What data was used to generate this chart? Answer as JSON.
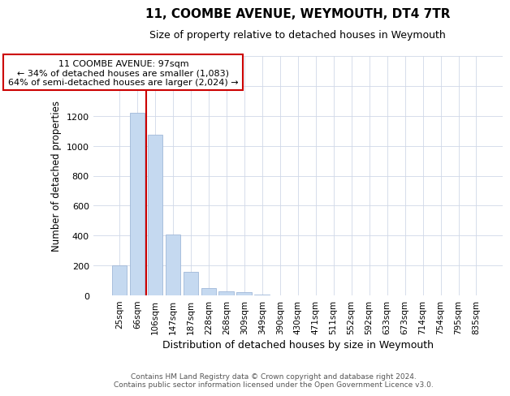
{
  "title1": "11, COOMBE AVENUE, WEYMOUTH, DT4 7TR",
  "title2": "Size of property relative to detached houses in Weymouth",
  "xlabel": "Distribution of detached houses by size in Weymouth",
  "ylabel": "Number of detached properties",
  "bar_labels": [
    "25sqm",
    "66sqm",
    "106sqm",
    "147sqm",
    "187sqm",
    "228sqm",
    "268sqm",
    "309sqm",
    "349sqm",
    "390sqm",
    "430sqm",
    "471sqm",
    "511sqm",
    "552sqm",
    "592sqm",
    "633sqm",
    "673sqm",
    "714sqm",
    "754sqm",
    "795sqm",
    "835sqm"
  ],
  "bar_values": [
    200,
    1220,
    1075,
    405,
    160,
    50,
    25,
    20,
    5,
    0,
    0,
    0,
    0,
    0,
    0,
    0,
    0,
    0,
    0,
    0,
    0
  ],
  "bar_color": "#c5d9f0",
  "bar_edgecolor": "#a0b8d8",
  "grid_color": "#d0d8e8",
  "ylim": [
    0,
    1600
  ],
  "red_line_x": 1.5,
  "annotation_title": "11 COOMBE AVENUE: 97sqm",
  "annotation_line1": "← 34% of detached houses are smaller (1,083)",
  "annotation_line2": "64% of semi-detached houses are larger (2,024) →",
  "annotation_box_color": "#ffffff",
  "annotation_box_edgecolor": "#cc0000",
  "red_line_color": "#cc0000",
  "footer1": "Contains HM Land Registry data © Crown copyright and database right 2024.",
  "footer2": "Contains public sector information licensed under the Open Government Licence v3.0."
}
